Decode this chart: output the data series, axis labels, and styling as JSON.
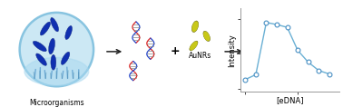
{
  "graph": {
    "x": [
      0,
      1,
      2,
      3,
      4,
      5,
      6,
      7,
      8
    ],
    "y": [
      0.13,
      0.2,
      0.95,
      0.92,
      0.88,
      0.55,
      0.38,
      0.26,
      0.21
    ],
    "xlabel": "[eDNA]",
    "ylabel": "Intensity",
    "line_color": "#6ab0d4",
    "marker_color": "#4a90c4",
    "marker_size": 3.5,
    "line_width": 1.0
  },
  "circle": {
    "fill_color": "#cce8f4",
    "border_color": "#88c4e0",
    "label": "Microorganisms",
    "label_fontsize": 5.5
  },
  "bacteria_color": "#1030b0",
  "bacteria_dark": "#0a2080",
  "seaweed_color": "#5599cc",
  "water_color": "#a8d8f0",
  "aunrs_label": "AuNRs",
  "aunrs_fontsize": 5.5,
  "rod_dark": "#909010",
  "rod_light": "#c8c818",
  "arrow_color": "#222222",
  "dna_red": "#dd2222",
  "dna_blue": "#2244cc"
}
